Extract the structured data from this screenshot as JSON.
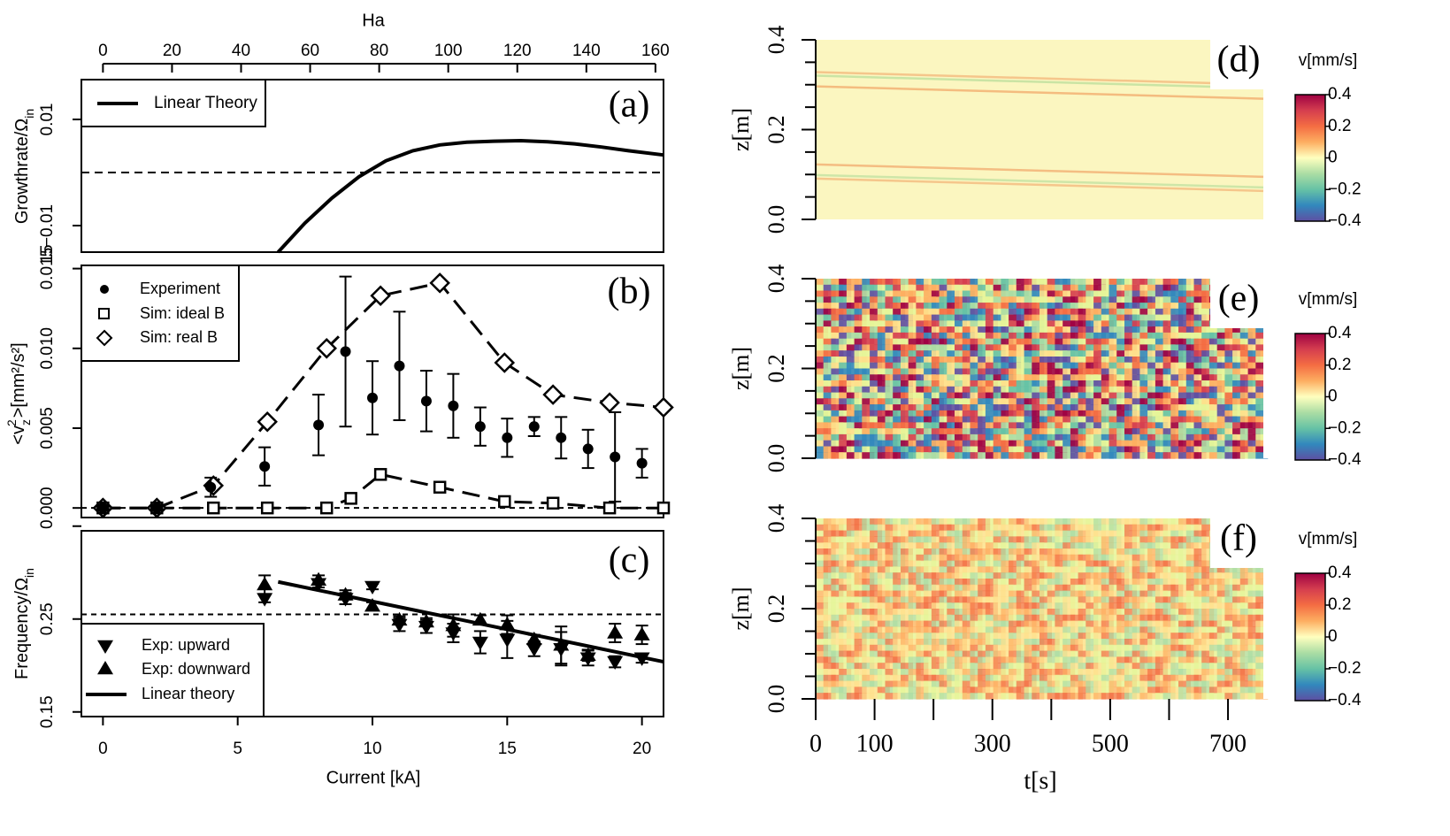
{
  "chart_data": [
    {
      "id": "a",
      "panel_label": "(a)",
      "type": "line",
      "ylabel": "Growthrate/Ω",
      "ylabel_sub": "in",
      "top_axis_title": "Ha",
      "top_ticks": [
        0,
        20,
        40,
        60,
        80,
        100,
        120,
        140,
        160
      ],
      "xlim": [
        -0.8,
        20.8
      ],
      "ylim": [
        -0.015,
        0.0175
      ],
      "ytick_values": [
        -0.01,
        0.01
      ],
      "ytick_labels": [
        "−0.01",
        "0.01"
      ],
      "ycut_label": "15",
      "hline": 0,
      "legend": [
        "Linear Theory"
      ],
      "series": [
        {
          "name": "Linear Theory",
          "x": [
            6.5,
            7.5,
            8.5,
            9.5,
            10.5,
            11.5,
            12.5,
            13.5,
            14.5,
            15.5,
            16.5,
            17.5,
            18.5,
            19.5,
            20.8
          ],
          "y": [
            -0.015,
            -0.0095,
            -0.0048,
            -0.0008,
            0.0022,
            0.0041,
            0.0052,
            0.0057,
            0.0059,
            0.006,
            0.0058,
            0.0054,
            0.0048,
            0.0041,
            0.0033
          ]
        }
      ]
    },
    {
      "id": "b",
      "panel_label": "(b)",
      "type": "scatter",
      "ylabel": "<v",
      "ylabel_tail": ">[mm²/s²]",
      "xlim": [
        -0.8,
        20.8
      ],
      "ylim": [
        -0.0006,
        0.0152
      ],
      "ytick_values": [
        0,
        0.005,
        0.01,
        0.015
      ],
      "ytick_labels": [
        "0.000",
        "0.005",
        "0.010",
        "0.015"
      ],
      "hline": 0,
      "legend": [
        "Experiment",
        "Sim: ideal B",
        "Sim: real B"
      ],
      "experiment": {
        "x": [
          0,
          2,
          4,
          6,
          8,
          9,
          10,
          11,
          12,
          13,
          14,
          15,
          16,
          17,
          18,
          19,
          20
        ],
        "y": [
          0,
          0,
          0.0013,
          0.0026,
          0.0052,
          0.0098,
          0.0069,
          0.0089,
          0.0067,
          0.0064,
          0.0051,
          0.0044,
          0.0051,
          0.0044,
          0.0037,
          0.0032,
          0.0028
        ],
        "err": [
          0.0002,
          0.0002,
          0.0006,
          0.0012,
          0.0019,
          0.0047,
          0.0023,
          0.0034,
          0.0019,
          0.002,
          0.0012,
          0.0012,
          0.0006,
          0.0013,
          0.0012,
          0.0028,
          0.0009
        ]
      },
      "sim_ideal": {
        "x": [
          0,
          2,
          4.1,
          6.1,
          8.3,
          9.2,
          10.3,
          12.5,
          14.9,
          16.7,
          18.8,
          20.8
        ],
        "y": [
          0,
          0,
          0,
          0,
          0,
          0.0006,
          0.0021,
          0.0013,
          0.0004,
          0.0003,
          0,
          0
        ]
      },
      "sim_real": {
        "x": [
          0,
          2,
          4.1,
          6.1,
          8.3,
          10.3,
          12.5,
          14.9,
          16.7,
          18.8,
          20.8
        ],
        "y": [
          0,
          0,
          0.0014,
          0.0054,
          0.01,
          0.0133,
          0.0141,
          0.0091,
          0.0071,
          0.0066,
          0.0063
        ]
      }
    },
    {
      "id": "c",
      "panel_label": "(c)",
      "type": "scatter",
      "ylabel": "Frequency/Ω",
      "ylabel_sub": "in",
      "xlabel": "Current [kA]",
      "xticks": [
        0,
        5,
        10,
        15,
        20
      ],
      "xlim": [
        -0.8,
        20.8
      ],
      "ylim": [
        0.145,
        0.345
      ],
      "ytick_values": [
        0.15,
        0.25
      ],
      "ytick_labels": [
        "0.15",
        "0.25"
      ],
      "hline": 0.255,
      "legend": [
        "Exp: upward",
        "Exp: downward",
        "Linear theory"
      ],
      "upward": {
        "x": [
          6,
          8,
          9,
          10,
          11,
          12,
          13,
          14,
          15,
          16,
          17,
          18,
          19,
          20
        ],
        "y": [
          0.272,
          0.288,
          0.272,
          0.285,
          0.244,
          0.242,
          0.235,
          0.225,
          0.228,
          0.218,
          0.218,
          0.208,
          0.204,
          0.208
        ],
        "err": [
          0.004,
          0.004,
          0.006,
          0.003,
          0.007,
          0.007,
          0.01,
          0.012,
          0.02,
          0.008,
          0.018,
          0.008,
          0.006,
          0.005
        ]
      },
      "downward": {
        "x": [
          6,
          8,
          9,
          10,
          11,
          12,
          13,
          14,
          15,
          16,
          17,
          18,
          19,
          20
        ],
        "y": [
          0.287,
          0.292,
          0.276,
          0.264,
          0.249,
          0.247,
          0.243,
          0.249,
          0.244,
          0.228,
          0.222,
          0.211,
          0.235,
          0.233
        ],
        "err": [
          0.01,
          0.005,
          0.005,
          0.004,
          0.004,
          0.004,
          0.012,
          0.005,
          0.01,
          0.005,
          0.02,
          0.006,
          0.01,
          0.01
        ]
      },
      "theory": {
        "x": [
          6.5,
          20.8
        ],
        "y": [
          0.29,
          0.204
        ]
      }
    },
    {
      "id": "d",
      "panel_label": "(d)",
      "type": "heatmap",
      "ylabel": "z[m]",
      "yticks": [
        "0.0",
        "0.2",
        "0.4"
      ],
      "cbar_title": "v[mm/s]",
      "cbar_ticks": [
        "0.4",
        "0.2",
        "0",
        "−0.2",
        "−0.4"
      ],
      "pattern": "stripes"
    },
    {
      "id": "e",
      "panel_label": "(e)",
      "type": "heatmap",
      "ylabel": "z[m]",
      "yticks": [
        "0.0",
        "0.2",
        "0.4"
      ],
      "cbar_title": "v[mm/s]",
      "cbar_ticks": [
        "0.4",
        "0.2",
        "0",
        "−0.2",
        "−0.4"
      ],
      "pattern": "strong"
    },
    {
      "id": "f",
      "panel_label": "(f)",
      "type": "heatmap",
      "ylabel": "z[m]",
      "yticks": [
        "0.0",
        "0.2",
        "0.4"
      ],
      "xlabel": "t[s]",
      "xticks": [
        "0",
        "100",
        "300",
        "500",
        "700"
      ],
      "cbar_title": "v[mm/s]",
      "cbar_ticks": [
        "0.4",
        "0.2",
        "0",
        "−0.2",
        "−0.4"
      ],
      "pattern": "weak"
    }
  ]
}
